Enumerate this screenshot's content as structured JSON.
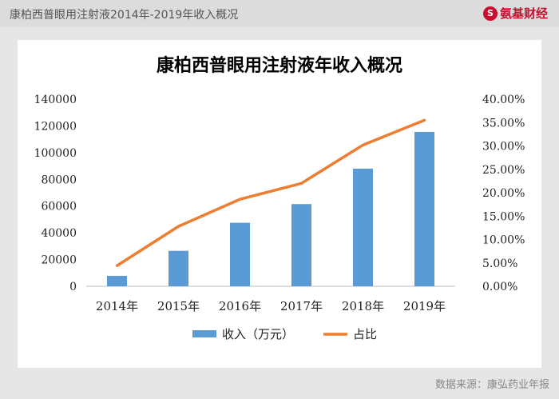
{
  "header": {
    "title": "康柏西普眼用注射液2014年-2019年收入概况",
    "brand_logo": "S",
    "brand_name": "氨基财经"
  },
  "source": "数据来源：康弘药业年报",
  "chart_data": {
    "type": "bar",
    "title": "康柏西普眼用注射液年收入概况",
    "categories": [
      "2014年",
      "2015年",
      "2016年",
      "2017年",
      "2018年",
      "2019年"
    ],
    "series": [
      {
        "name": "收入（万元）",
        "type": "bar",
        "axis": "left",
        "color": "#5b9bd5",
        "values": [
          7800,
          26500,
          47500,
          61500,
          88000,
          115500
        ]
      },
      {
        "name": "占比",
        "type": "line",
        "axis": "right",
        "color": "#ed7d31",
        "values": [
          0.044,
          0.128,
          0.186,
          0.22,
          0.302,
          0.355
        ]
      }
    ],
    "y_left": {
      "ylim": [
        0,
        140000
      ],
      "ticks": [
        "0",
        "20000",
        "40000",
        "60000",
        "80000",
        "100000",
        "120000",
        "140000"
      ]
    },
    "y_right": {
      "ylim": [
        0,
        0.4
      ],
      "ticks": [
        "0.00%",
        "5.00%",
        "10.00%",
        "15.00%",
        "20.00%",
        "25.00%",
        "30.00%",
        "35.00%",
        "40.00%"
      ]
    },
    "grid": false,
    "legend": "bottom"
  }
}
